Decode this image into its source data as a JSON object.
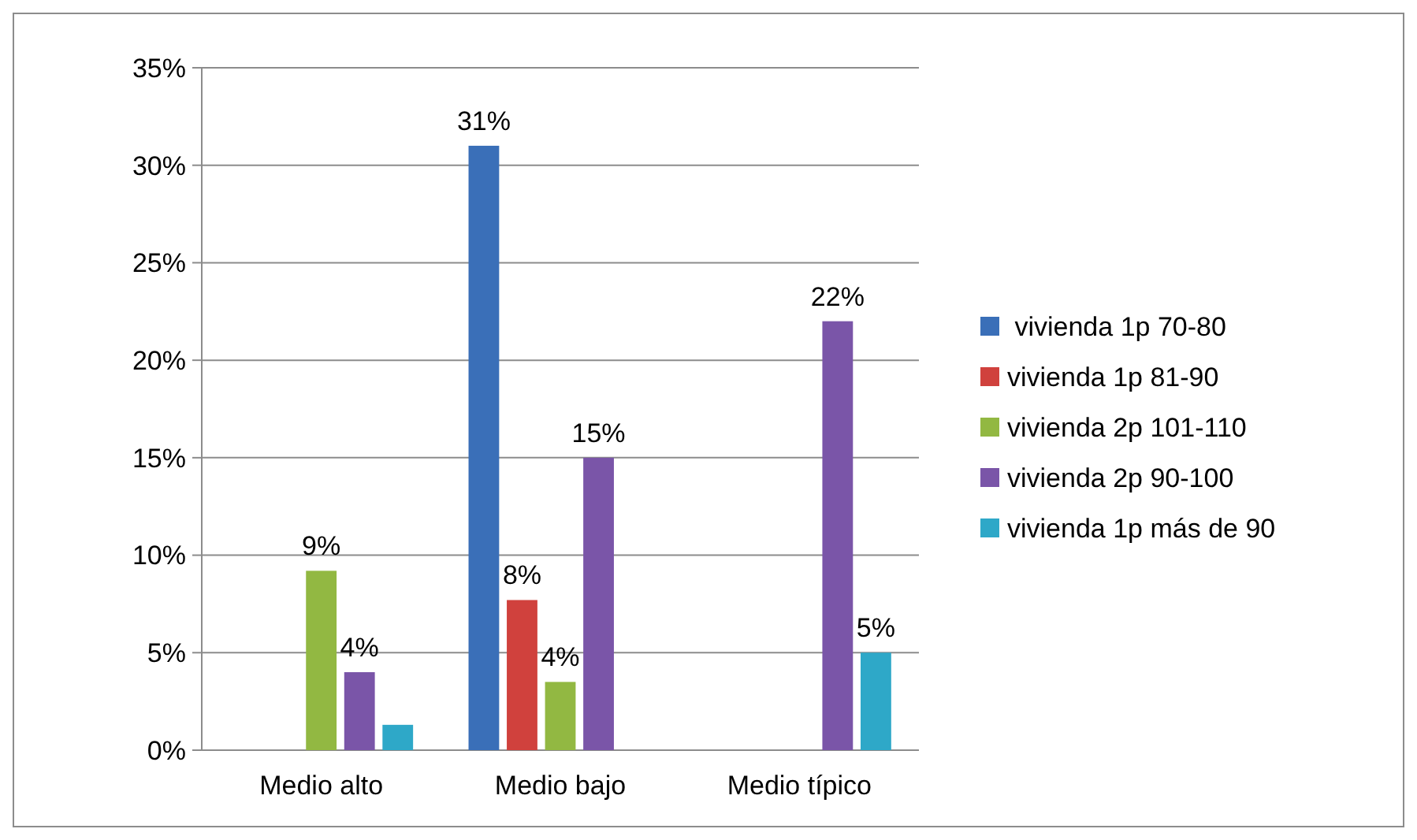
{
  "chart_data": {
    "type": "bar",
    "categories": [
      "Medio alto",
      "Medio bajo",
      "Medio típico"
    ],
    "series": [
      {
        "name": " vivienda 1p 70-80",
        "color": "#3a6fb8",
        "values": [
          null,
          31,
          null
        ],
        "value_labels": [
          null,
          "31%",
          null
        ]
      },
      {
        "name": "vivienda 1p 81-90",
        "color": "#d0413d",
        "values": [
          null,
          7.7,
          null
        ],
        "value_labels": [
          null,
          "8%",
          null
        ]
      },
      {
        "name": "vivienda 2p 101-110",
        "color": "#92b842",
        "values": [
          9.2,
          3.5,
          null
        ],
        "value_labels": [
          "9%",
          "4%",
          null
        ]
      },
      {
        "name": "vivienda 2p 90-100",
        "color": "#7a55a8",
        "values": [
          4,
          15,
          22
        ],
        "value_labels": [
          "4%",
          "15%",
          "22%"
        ]
      },
      {
        "name": "vivienda 1p más de 90",
        "color": "#2ea8c8",
        "values": [
          1.3,
          null,
          5
        ],
        "value_labels": [
          null,
          null,
          "5%"
        ]
      }
    ],
    "ylim": [
      0,
      35
    ],
    "yticks": [
      {
        "value": 0,
        "label": "0%"
      },
      {
        "value": 5,
        "label": "5%"
      },
      {
        "value": 10,
        "label": "10%"
      },
      {
        "value": 15,
        "label": "15%"
      },
      {
        "value": 20,
        "label": "20%"
      },
      {
        "value": 25,
        "label": "25%"
      },
      {
        "value": 30,
        "label": "30%"
      },
      {
        "value": 35,
        "label": "35%"
      }
    ],
    "grid": "y",
    "legend": "right"
  }
}
